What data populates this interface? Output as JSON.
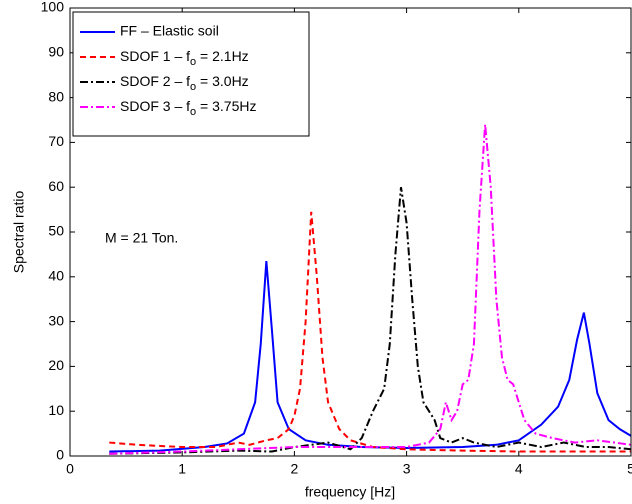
{
  "chart_data": {
    "type": "line",
    "xlabel": "frequency [Hz]",
    "ylabel": "Spectral ratio",
    "annotation": "M = 21 Ton.",
    "xlim": [
      0,
      5
    ],
    "xticks": [
      0,
      1,
      2,
      3,
      4,
      5
    ],
    "ylim": [
      0,
      100
    ],
    "yticks": [
      0,
      10,
      20,
      30,
      40,
      50,
      60,
      70,
      80,
      90,
      100
    ],
    "legend": "upper left",
    "series": [
      {
        "name": "FF – Elastic soil",
        "color": "#0000ff",
        "style": "solid",
        "x": [
          0.35,
          0.8,
          1.2,
          1.4,
          1.55,
          1.65,
          1.7,
          1.75,
          1.8,
          1.85,
          1.95,
          2.1,
          2.3,
          2.6,
          3.0,
          3.5,
          3.8,
          4.0,
          4.2,
          4.35,
          4.45,
          4.52,
          4.58,
          4.63,
          4.7,
          4.8,
          4.9,
          5.0
        ],
        "values": [
          1.0,
          1.2,
          2.0,
          2.8,
          5,
          12,
          25,
          43.5,
          28,
          12,
          6,
          3.5,
          2.5,
          2,
          1.8,
          2,
          2.5,
          3.5,
          7,
          11,
          17,
          26,
          32,
          25,
          14,
          8,
          6,
          4.5
        ]
      },
      {
        "name": "SDOF 1 – fo = 2.1Hz",
        "color": "#ff0000",
        "style": "dashed",
        "x": [
          0.35,
          0.6,
          1.0,
          1.3,
          1.5,
          1.6,
          1.75,
          1.85,
          1.95,
          2.0,
          2.05,
          2.1,
          2.15,
          2.2,
          2.25,
          2.3,
          2.4,
          2.5,
          2.7,
          3.0,
          3.5,
          4.0,
          4.5,
          5.0
        ],
        "values": [
          3,
          2.5,
          2,
          2,
          3,
          2.5,
          3.5,
          4,
          6,
          9,
          15,
          30,
          54.5,
          40,
          22,
          12,
          6,
          3.5,
          2,
          1.5,
          1.2,
          1,
          1,
          1
        ]
      },
      {
        "name": "SDOF 2 – fo = 3.0Hz",
        "color": "#000000",
        "style": "dashdot",
        "x": [
          0.35,
          1.0,
          1.5,
          1.8,
          2.0,
          2.3,
          2.5,
          2.6,
          2.7,
          2.8,
          2.85,
          2.9,
          2.95,
          3.0,
          3.05,
          3.1,
          3.15,
          3.25,
          3.3,
          3.4,
          3.5,
          3.6,
          3.8,
          4.0,
          4.2,
          4.4,
          4.6,
          4.8,
          5.0
        ],
        "values": [
          0.5,
          0.8,
          1.2,
          1,
          2,
          3,
          1.5,
          4,
          10,
          15,
          25,
          45,
          60,
          52,
          35,
          20,
          12,
          8,
          4,
          3,
          4,
          3,
          2,
          3,
          2,
          3,
          2,
          2,
          1.5
        ]
      },
      {
        "name": "SDOF 3 – fo = 3.75Hz",
        "color": "#ff00ff",
        "style": "dashdot",
        "x": [
          0.35,
          1.0,
          1.5,
          2.0,
          2.5,
          3.0,
          3.2,
          3.3,
          3.35,
          3.4,
          3.45,
          3.5,
          3.55,
          3.6,
          3.65,
          3.7,
          3.75,
          3.8,
          3.85,
          3.9,
          3.95,
          4.0,
          4.05,
          4.15,
          4.3,
          4.5,
          4.7,
          5.0
        ],
        "values": [
          0.5,
          1,
          1.5,
          2,
          2,
          2,
          3,
          6,
          12,
          8,
          10,
          16,
          17,
          25,
          55,
          74,
          60,
          35,
          22,
          17,
          16,
          12,
          8,
          5,
          4,
          3,
          3.5,
          2.5
        ]
      }
    ]
  }
}
